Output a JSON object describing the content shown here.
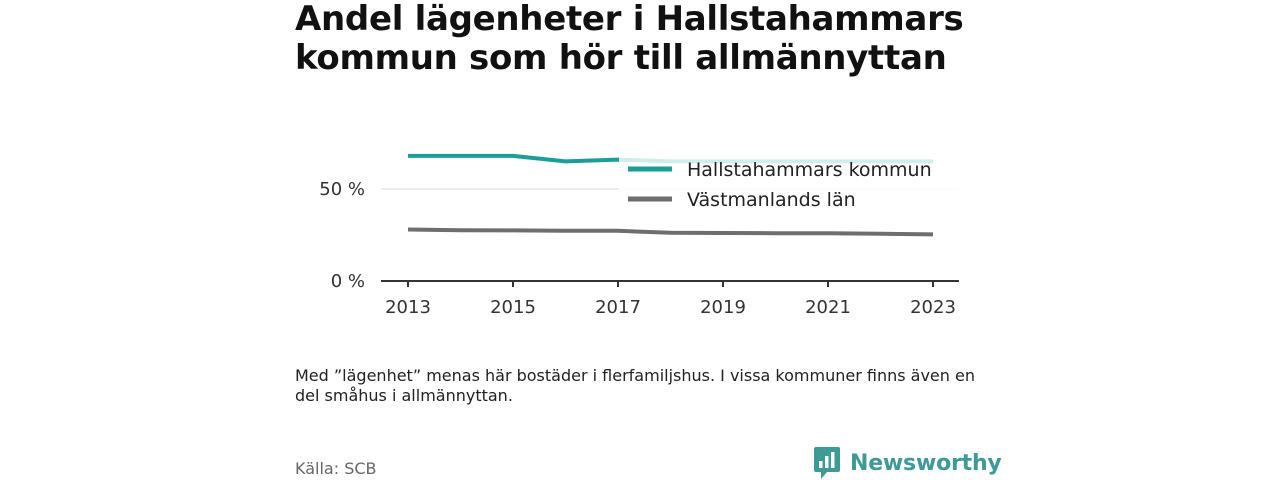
{
  "title": "Andel lägenheter i Hallstahammars kommun som hör till allmännyttan",
  "note": "Med ”lägenhet” menas här bostäder i flerfamiljshus. I vissa kommuner finns även en del småhus i allmännyttan.",
  "source": "Källa: SCB",
  "brand": {
    "name": "Newsworthy",
    "logo_icon": "newsworthy-logo-icon"
  },
  "colors": {
    "hallstahammar": "#1a9e96",
    "vastmanland": "#6e6e70",
    "brand": "#3e9a94"
  },
  "chart_data": {
    "type": "line",
    "title": "Andel lägenheter i Hallstahammars kommun som hör till allmännyttan",
    "xlabel": "",
    "ylabel": "",
    "x": [
      2013,
      2014,
      2015,
      2016,
      2017,
      2018,
      2019,
      2020,
      2021,
      2022,
      2023
    ],
    "x_ticks": [
      "2013",
      "2015",
      "2017",
      "2019",
      "2021",
      "2023"
    ],
    "y_ticks": [
      "0 %",
      "50 %"
    ],
    "ylim": [
      0,
      75
    ],
    "grid": true,
    "legend_position": "top-right",
    "series": [
      {
        "name": "Hallstahammars kommun",
        "values": [
          68,
          68,
          68,
          65,
          66,
          65,
          65,
          65,
          65,
          65,
          65
        ]
      },
      {
        "name": "Västmanlands län",
        "values": [
          28,
          27.6,
          27.5,
          27.3,
          27.3,
          26.2,
          26.1,
          26,
          26,
          25.7,
          25.3
        ]
      }
    ]
  }
}
